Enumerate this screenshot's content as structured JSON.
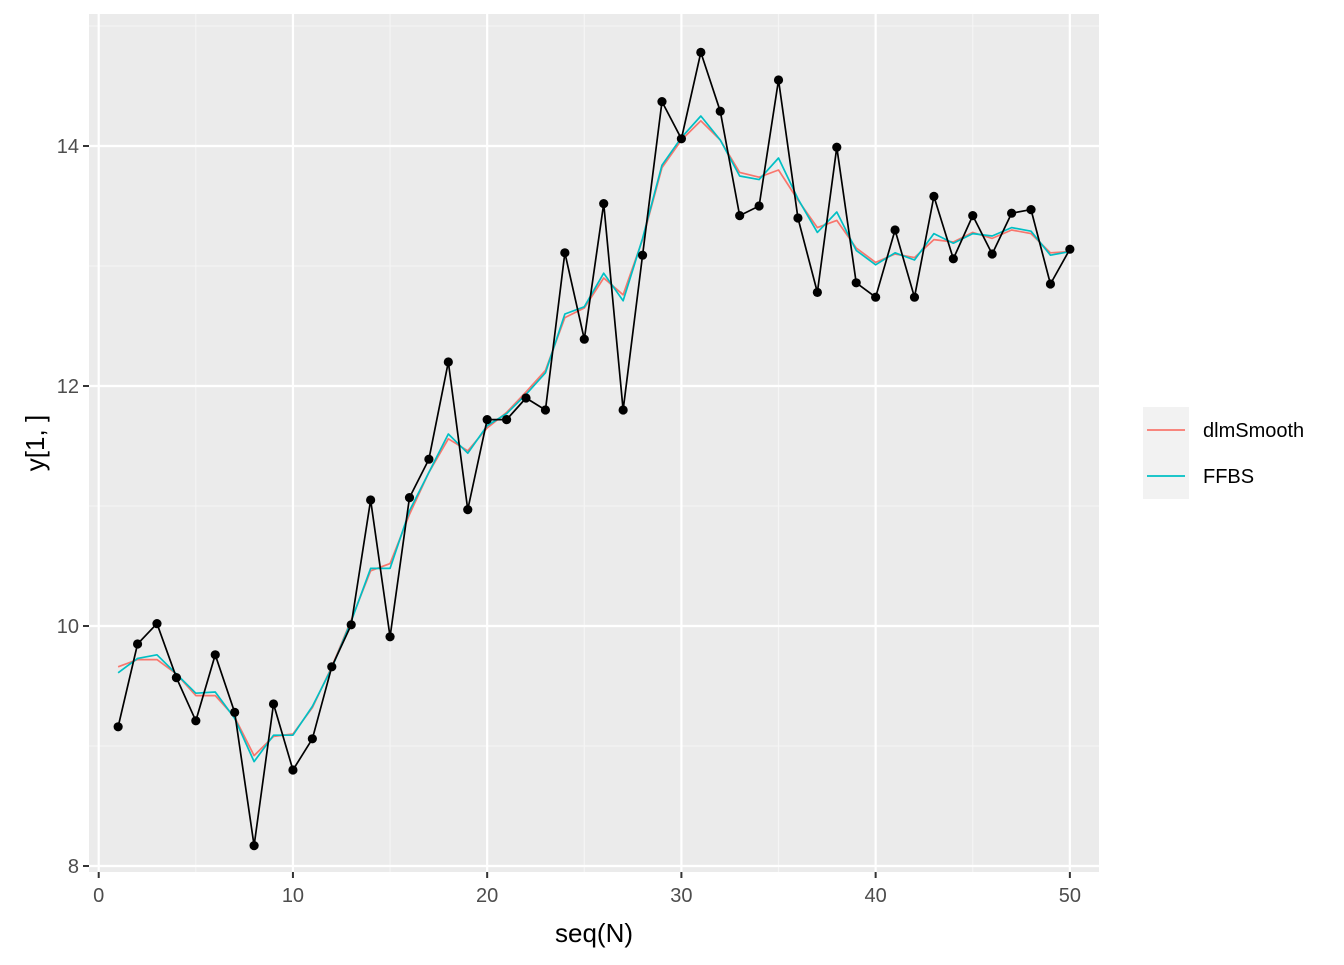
{
  "chart_data": {
    "type": "line",
    "xlabel": "seq(N)",
    "ylabel": "y[1, ]",
    "xlim": [
      -0.5,
      51.5
    ],
    "ylim": [
      7.95,
      15.1
    ],
    "x_ticks": [
      0,
      10,
      20,
      30,
      40,
      50
    ],
    "x_tick_labels": [
      "0",
      "10",
      "20",
      "30",
      "40",
      "50"
    ],
    "y_ticks": [
      8,
      10,
      12,
      14
    ],
    "y_tick_labels": [
      "8",
      "10",
      "12",
      "14"
    ],
    "grid": true,
    "legend_position": "right",
    "x": [
      1,
      2,
      3,
      4,
      5,
      6,
      7,
      8,
      9,
      10,
      11,
      12,
      13,
      14,
      15,
      16,
      17,
      18,
      19,
      20,
      21,
      22,
      23,
      24,
      25,
      26,
      27,
      28,
      29,
      30,
      31,
      32,
      33,
      34,
      35,
      36,
      37,
      38,
      39,
      40,
      41,
      42,
      43,
      44,
      45,
      46,
      47,
      48,
      49,
      50
    ],
    "observed": {
      "values": [
        9.16,
        9.85,
        10.02,
        9.57,
        9.21,
        9.76,
        9.28,
        8.17,
        9.35,
        8.8,
        9.06,
        9.66,
        10.01,
        11.05,
        9.91,
        11.07,
        11.39,
        12.2,
        10.97,
        11.72,
        11.72,
        11.9,
        11.8,
        13.11,
        12.39,
        13.52,
        11.8,
        13.09,
        14.37,
        14.06,
        14.78,
        14.29,
        13.42,
        13.5,
        14.55,
        13.4,
        12.78,
        13.99,
        12.86,
        12.74,
        13.3,
        12.74,
        13.58,
        13.06,
        13.42,
        13.1,
        13.44,
        13.47,
        12.85,
        13.14
      ],
      "color": "#000000"
    },
    "series": [
      {
        "name": "dlmSmooth",
        "color": "#F8766D",
        "values": [
          9.66,
          9.72,
          9.72,
          9.6,
          9.42,
          9.42,
          9.24,
          8.92,
          9.08,
          9.1,
          9.32,
          9.66,
          10.05,
          10.46,
          10.52,
          10.93,
          11.28,
          11.56,
          11.46,
          11.65,
          11.78,
          11.95,
          12.13,
          12.57,
          12.65,
          12.9,
          12.76,
          13.22,
          13.82,
          14.05,
          14.21,
          14.05,
          13.78,
          13.74,
          13.8,
          13.55,
          13.32,
          13.38,
          13.15,
          13.03,
          13.1,
          13.07,
          13.22,
          13.2,
          13.28,
          13.23,
          13.3,
          13.27,
          13.11,
          13.12
        ]
      },
      {
        "name": "FFBS",
        "color": "#00BFC4",
        "values": [
          9.61,
          9.73,
          9.76,
          9.6,
          9.44,
          9.45,
          9.23,
          8.87,
          9.09,
          9.09,
          9.33,
          9.65,
          10.04,
          10.48,
          10.48,
          10.96,
          11.28,
          11.6,
          11.44,
          11.67,
          11.77,
          11.93,
          12.11,
          12.6,
          12.66,
          12.94,
          12.71,
          13.23,
          13.84,
          14.07,
          14.25,
          14.05,
          13.75,
          13.72,
          13.9,
          13.56,
          13.28,
          13.45,
          13.13,
          13.01,
          13.11,
          13.05,
          13.27,
          13.19,
          13.27,
          13.25,
          13.32,
          13.29,
          13.09,
          13.12
        ]
      }
    ]
  },
  "theme": {
    "panel_background": "#EBEBEB",
    "grid_major": "#FFFFFF",
    "grid_minor": "#F5F5F5",
    "tick_text": "#4D4D4D",
    "axis_title": "#000000",
    "legend_key_background": "#F2F2F2"
  }
}
